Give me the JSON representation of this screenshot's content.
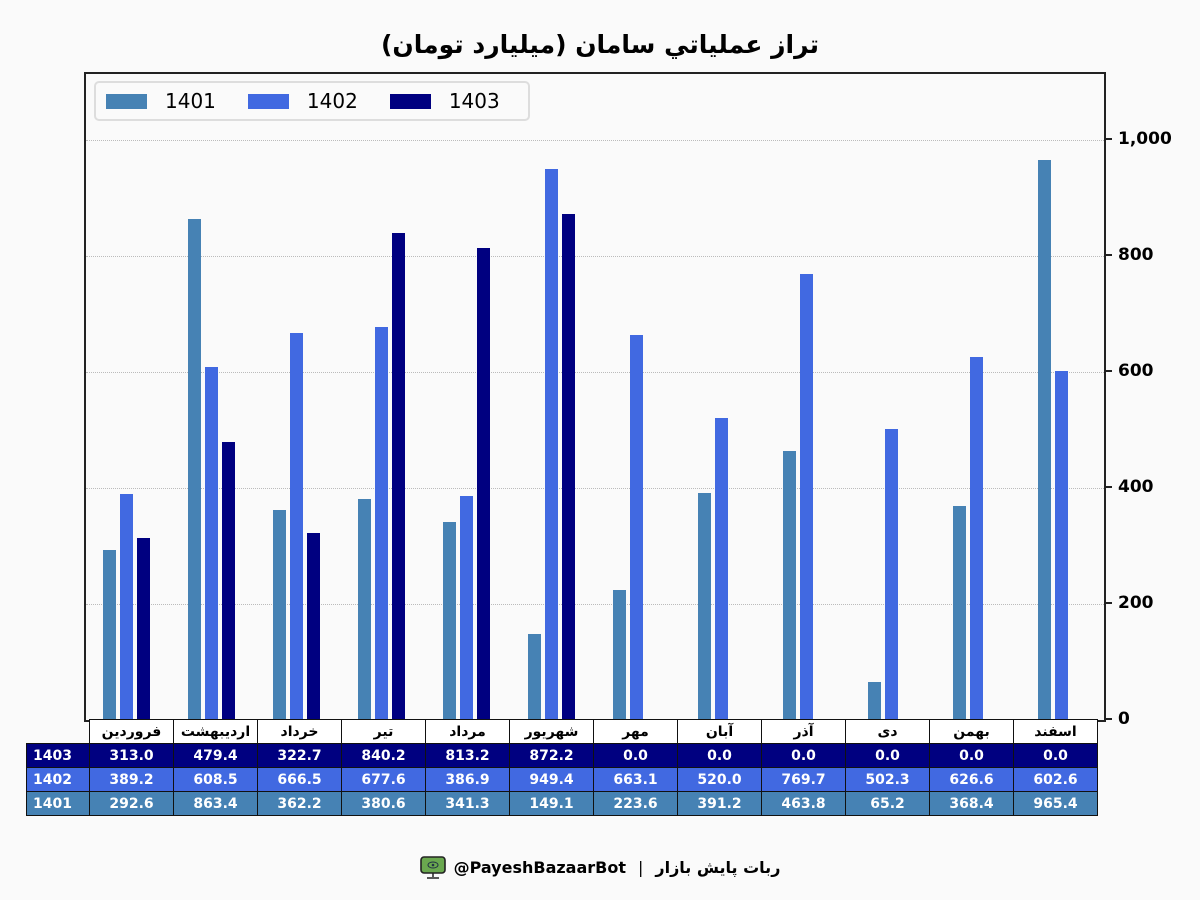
{
  "title": "تراز عملیاتي سامان (میلیارد تومان)",
  "legend": [
    {
      "label": "1401",
      "color": "#4682b4"
    },
    {
      "label": "1402",
      "color": "#4169e1"
    },
    {
      "label": "1403",
      "color": "#000080"
    }
  ],
  "y_axis": {
    "ticks": [
      "0",
      "200",
      "400",
      "600",
      "800",
      "1,000"
    ]
  },
  "table": {
    "columns": [
      "فروردین",
      "اردیبهشت",
      "خرداد",
      "تیر",
      "مرداد",
      "شهریور",
      "مهر",
      "آبان",
      "آذر",
      "دی",
      "بهمن",
      "اسفند"
    ],
    "rows": [
      {
        "label": "1403",
        "color": "#000080",
        "values": [
          "313.0",
          "479.4",
          "322.7",
          "840.2",
          "813.2",
          "872.2",
          "0.0",
          "0.0",
          "0.0",
          "0.0",
          "0.0",
          "0.0"
        ]
      },
      {
        "label": "1402",
        "color": "#4169e1",
        "values": [
          "389.2",
          "608.5",
          "666.5",
          "677.6",
          "386.9",
          "949.4",
          "663.1",
          "520.0",
          "769.7",
          "502.3",
          "626.6",
          "602.6"
        ]
      },
      {
        "label": "1401",
        "color": "#4682b4",
        "values": [
          "292.6",
          "863.4",
          "362.2",
          "380.6",
          "341.3",
          "149.1",
          "223.6",
          "391.2",
          "463.8",
          "65.2",
          "368.4",
          "965.4"
        ]
      }
    ]
  },
  "footer": {
    "bot_handle": "@PayeshBazaarBot",
    "separator": "|",
    "bot_name": "ربات پایش بازار"
  },
  "chart_data": {
    "type": "bar",
    "title": "تراز عملیاتي سامان (میلیارد تومان)",
    "xlabel": "",
    "ylabel": "",
    "ylim": [
      0,
      1115
    ],
    "y_axis_position": "right",
    "grid": "horizontal dotted",
    "legend_position": "upper left",
    "categories": [
      "فروردین",
      "اردیبهشت",
      "خرداد",
      "تیر",
      "مرداد",
      "شهریور",
      "مهر",
      "آبان",
      "آذر",
      "دی",
      "بهمن",
      "اسفند"
    ],
    "series": [
      {
        "name": "1401",
        "color": "#4682b4",
        "values": [
          292.6,
          863.4,
          362.2,
          380.6,
          341.3,
          149.1,
          223.6,
          391.2,
          463.8,
          65.2,
          368.4,
          965.4
        ]
      },
      {
        "name": "1402",
        "color": "#4169e1",
        "values": [
          389.2,
          608.5,
          666.5,
          677.6,
          386.9,
          949.4,
          663.1,
          520.0,
          769.7,
          502.3,
          626.6,
          602.6
        ]
      },
      {
        "name": "1403",
        "color": "#000080",
        "values": [
          313.0,
          479.4,
          322.7,
          840.2,
          813.2,
          872.2,
          0.0,
          0.0,
          0.0,
          0.0,
          0.0,
          0.0
        ]
      }
    ]
  }
}
